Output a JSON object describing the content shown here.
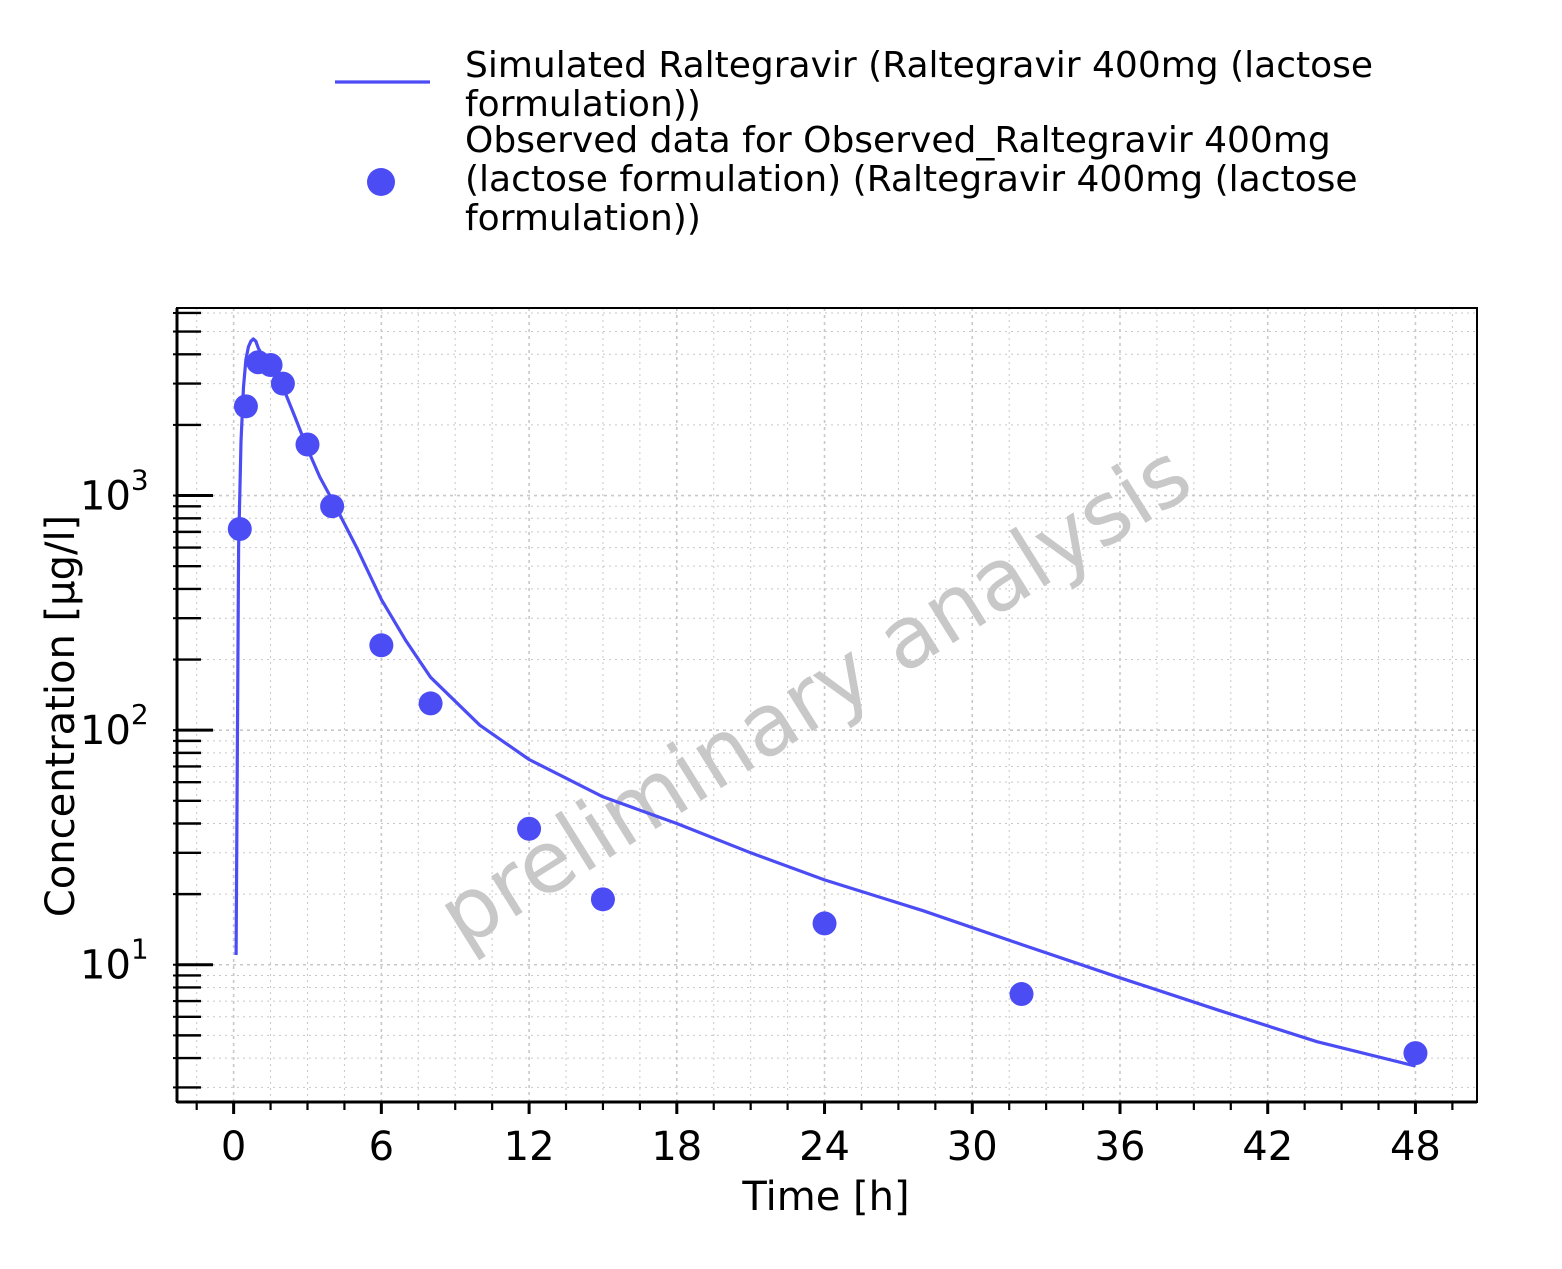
{
  "chart_data": {
    "type": "line",
    "xlabel": "Time [h]",
    "ylabel": "Concentration [µg/l]",
    "xlim": [
      -2.3,
      50.5
    ],
    "ylim": [
      2.6,
      6300
    ],
    "yscale": "log",
    "xticks": [
      0,
      6,
      12,
      18,
      24,
      30,
      36,
      42,
      48
    ],
    "xtick_labels": [
      "0",
      "6",
      "12",
      "18",
      "24",
      "30",
      "36",
      "42",
      "48"
    ],
    "yticks": [
      {
        "value": 10,
        "base": "10",
        "exp": "1"
      },
      {
        "value": 100,
        "base": "10",
        "exp": "2"
      },
      {
        "value": 1000,
        "base": "10",
        "exp": "3"
      }
    ],
    "grid": true,
    "legend_position": "top",
    "watermark": "preliminary analysis",
    "colors": {
      "series": "#4c4cf5",
      "grid": "#c8c8c8",
      "watermark": "#c8c8c8"
    },
    "series": [
      {
        "name_lines": [
          "Simulated Raltegravir (Raltegravir 400mg (lactose",
          "formulation))"
        ],
        "kind": "line",
        "x": [
          0.1,
          0.2,
          0.3,
          0.4,
          0.5,
          0.6,
          0.7,
          0.8,
          0.9,
          1.0,
          1.2,
          1.5,
          2,
          2.5,
          3,
          3.5,
          4,
          5,
          6,
          7,
          8,
          10,
          12,
          15,
          18,
          21,
          24,
          28,
          32,
          36,
          40,
          44,
          48
        ],
        "y": [
          11,
          600,
          1700,
          2900,
          3800,
          4300,
          4550,
          4650,
          4550,
          4250,
          3900,
          3550,
          2900,
          2150,
          1580,
          1200,
          960,
          600,
          360,
          240,
          168,
          105,
          75,
          52,
          40,
          30,
          23,
          17,
          12.2,
          8.8,
          6.4,
          4.7,
          3.7
        ]
      },
      {
        "name_lines": [
          "Observed data for Observed_Raltegravir 400mg",
          "(lactose formulation) (Raltegravir 400mg (lactose",
          "formulation))"
        ],
        "kind": "scatter",
        "x": [
          0.25,
          0.5,
          1.0,
          1.5,
          2.0,
          3.0,
          4.0,
          6.0,
          8.0,
          12.0,
          15.0,
          24.0,
          32.0,
          48.0
        ],
        "y": [
          720,
          2400,
          3700,
          3600,
          3000,
          1650,
          900,
          230,
          130,
          38,
          19,
          15,
          7.5,
          4.2
        ]
      }
    ]
  }
}
